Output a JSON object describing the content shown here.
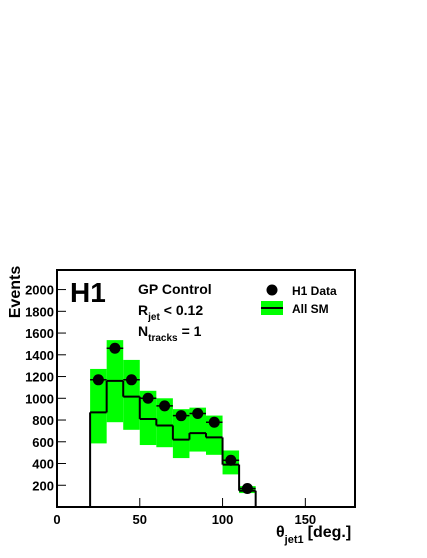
{
  "chart_data": {
    "type": "histogram",
    "title": "H1",
    "annotations": [
      [
        "GP Control"
      ],
      [
        "R",
        "jet",
        "< 0.12"
      ],
      [
        "N",
        "tracks",
        "= 1"
      ]
    ],
    "ylabel": "Events",
    "xlabel": [
      "θ",
      "jet1",
      "[deg.]"
    ],
    "bins": [
      20,
      30,
      40,
      50,
      60,
      70,
      80,
      90,
      100,
      110,
      120
    ],
    "series": [
      {
        "name": "H1 Data",
        "color": "#000000",
        "marker": "circle",
        "values": [
          1170,
          1460,
          1170,
          1000,
          930,
          840,
          860,
          780,
          430,
          170
        ]
      },
      {
        "name": "All SM",
        "color": "#000000",
        "marker": "step",
        "values": [
          870,
          1160,
          1015,
          810,
          750,
          620,
          680,
          640,
          390,
          150
        ],
        "band_color": "#00ff00",
        "upper": [
          1270,
          1535,
          1353,
          1069,
          1000,
          900,
          914,
          841,
          520,
          192
        ],
        "lower": [
          585,
          780,
          710,
          570,
          550,
          450,
          510,
          480,
          300,
          128
        ]
      }
    ],
    "xlim": [
      0,
      180
    ],
    "xticks": [
      0,
      50,
      100,
      150
    ],
    "ylim": [
      0,
      2180
    ],
    "yticks": [
      200,
      400,
      600,
      800,
      1000,
      1200,
      1400,
      1600,
      1800,
      2000
    ]
  }
}
